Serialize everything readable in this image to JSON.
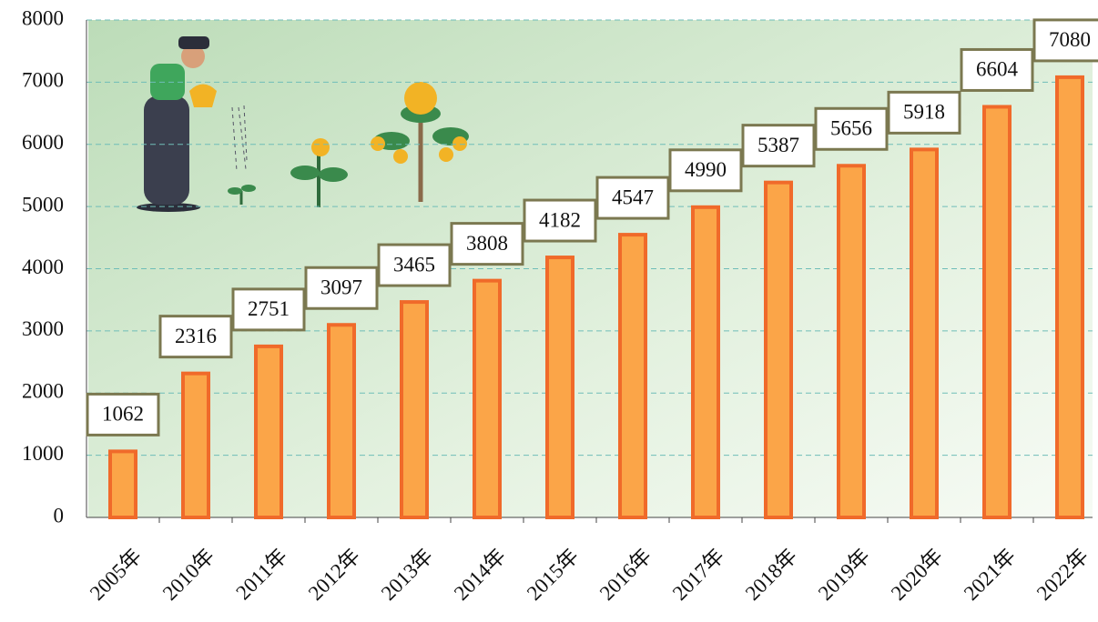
{
  "chart_data": {
    "type": "bar",
    "categories": [
      "2005年",
      "2010年",
      "2011年",
      "2012年",
      "2013年",
      "2014年",
      "2015年",
      "2016年",
      "2017年",
      "2018年",
      "2019年",
      "2020年",
      "2021年",
      "2022年"
    ],
    "values": [
      1062,
      2316,
      2751,
      3097,
      3465,
      3808,
      4182,
      4547,
      4990,
      5387,
      5656,
      5918,
      6604,
      7080
    ],
    "color": "#fba548",
    "ylim": [
      0,
      8000
    ],
    "yticks": [
      0,
      1000,
      2000,
      3000,
      4000,
      5000,
      6000,
      7000,
      8000
    ],
    "grid": true
  }
}
